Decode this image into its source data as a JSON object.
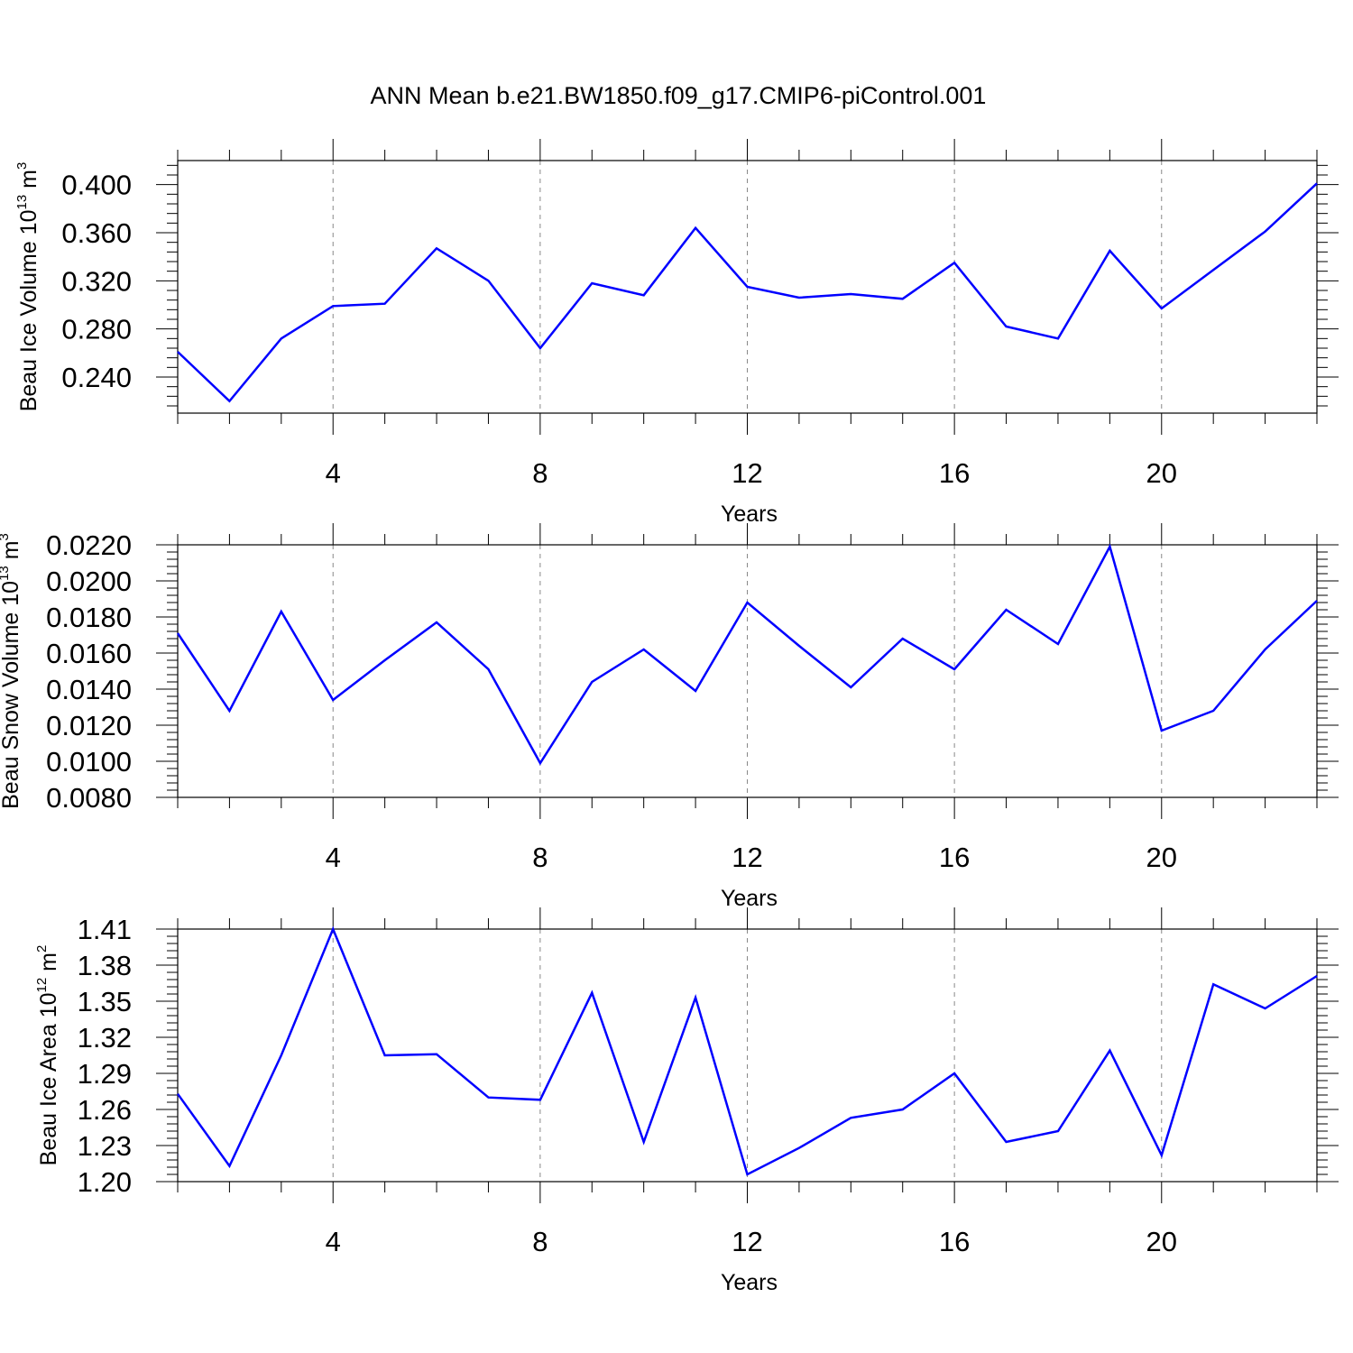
{
  "figure": {
    "title": "ANN Mean b.e21.BW1850.f09_g17.CMIP6-piControl.001"
  },
  "chart_data": [
    {
      "type": "line",
      "title": "",
      "xlabel": "Years",
      "ylabel": {
        "main": "Beau Ice Volume 10",
        "exp": "13",
        "unit": " m",
        "unit_exp": "3"
      },
      "x": [
        1,
        2,
        3,
        4,
        5,
        6,
        7,
        8,
        9,
        10,
        11,
        12,
        13,
        14,
        15,
        16,
        17,
        18,
        19,
        20,
        21,
        22,
        23
      ],
      "series": [
        {
          "values": [
            0.261,
            0.22,
            0.272,
            0.299,
            0.301,
            0.347,
            0.32,
            0.264,
            0.318,
            0.308,
            0.364,
            0.315,
            0.306,
            0.309,
            0.305,
            0.335,
            0.282,
            0.272,
            0.345,
            0.297,
            0.329,
            0.361,
            0.401
          ],
          "color": "#0000ff"
        }
      ],
      "xlim": [
        1,
        23
      ],
      "ylim": [
        0.21,
        0.42
      ],
      "xticks": [
        4,
        8,
        12,
        16,
        20
      ],
      "xtick_labels": [
        "4",
        "8",
        "12",
        "16",
        "20"
      ],
      "yticks": [
        0.24,
        0.28,
        0.32,
        0.36,
        0.4
      ],
      "ytick_labels": [
        "0.240",
        "0.280",
        "0.320",
        "0.360",
        "0.400"
      ],
      "grid": "vertical dashed at major x ticks"
    },
    {
      "type": "line",
      "title": "",
      "xlabel": "Years",
      "ylabel": {
        "main": "Beau Snow Volume 10",
        "exp": "13",
        "unit": " m",
        "unit_exp": "3"
      },
      "x": [
        1,
        2,
        3,
        4,
        5,
        6,
        7,
        8,
        9,
        10,
        11,
        12,
        13,
        14,
        15,
        16,
        17,
        18,
        19,
        20,
        21,
        22,
        23
      ],
      "series": [
        {
          "values": [
            0.0171,
            0.0128,
            0.0183,
            0.0134,
            0.0156,
            0.0177,
            0.0151,
            0.0099,
            0.0144,
            0.0162,
            0.0139,
            0.0188,
            0.0164,
            0.0141,
            0.0168,
            0.0151,
            0.0184,
            0.0165,
            0.0219,
            0.0117,
            0.0128,
            0.0162,
            0.0189
          ],
          "color": "#0000ff"
        }
      ],
      "xlim": [
        1,
        23
      ],
      "ylim": [
        0.008,
        0.022
      ],
      "xticks": [
        4,
        8,
        12,
        16,
        20
      ],
      "xtick_labels": [
        "4",
        "8",
        "12",
        "16",
        "20"
      ],
      "yticks": [
        0.008,
        0.01,
        0.012,
        0.014,
        0.016,
        0.018,
        0.02,
        0.022
      ],
      "ytick_labels": [
        "0.0080",
        "0.0100",
        "0.0120",
        "0.0140",
        "0.0160",
        "0.0180",
        "0.0200",
        "0.0220"
      ],
      "grid": "vertical dashed at major x ticks"
    },
    {
      "type": "line",
      "title": "",
      "xlabel": "Years",
      "ylabel": {
        "main": "Beau Ice Area 10",
        "exp": "12",
        "unit": " m",
        "unit_exp": "2"
      },
      "x": [
        1,
        2,
        3,
        4,
        5,
        6,
        7,
        8,
        9,
        10,
        11,
        12,
        13,
        14,
        15,
        16,
        17,
        18,
        19,
        20,
        21,
        22,
        23
      ],
      "series": [
        {
          "values": [
            1.273,
            1.213,
            1.305,
            1.41,
            1.305,
            1.306,
            1.27,
            1.268,
            1.357,
            1.233,
            1.353,
            1.206,
            1.228,
            1.253,
            1.26,
            1.29,
            1.233,
            1.242,
            1.309,
            1.222,
            1.364,
            1.344,
            1.371
          ],
          "color": "#0000ff"
        }
      ],
      "xlim": [
        1,
        23
      ],
      "ylim": [
        1.2,
        1.41
      ],
      "xticks": [
        4,
        8,
        12,
        16,
        20
      ],
      "xtick_labels": [
        "4",
        "8",
        "12",
        "16",
        "20"
      ],
      "yticks": [
        1.2,
        1.23,
        1.26,
        1.29,
        1.32,
        1.35,
        1.38,
        1.41
      ],
      "ytick_labels": [
        "1.20",
        "1.23",
        "1.26",
        "1.29",
        "1.32",
        "1.35",
        "1.38",
        "1.41"
      ],
      "grid": "vertical dashed at major x ticks"
    }
  ]
}
